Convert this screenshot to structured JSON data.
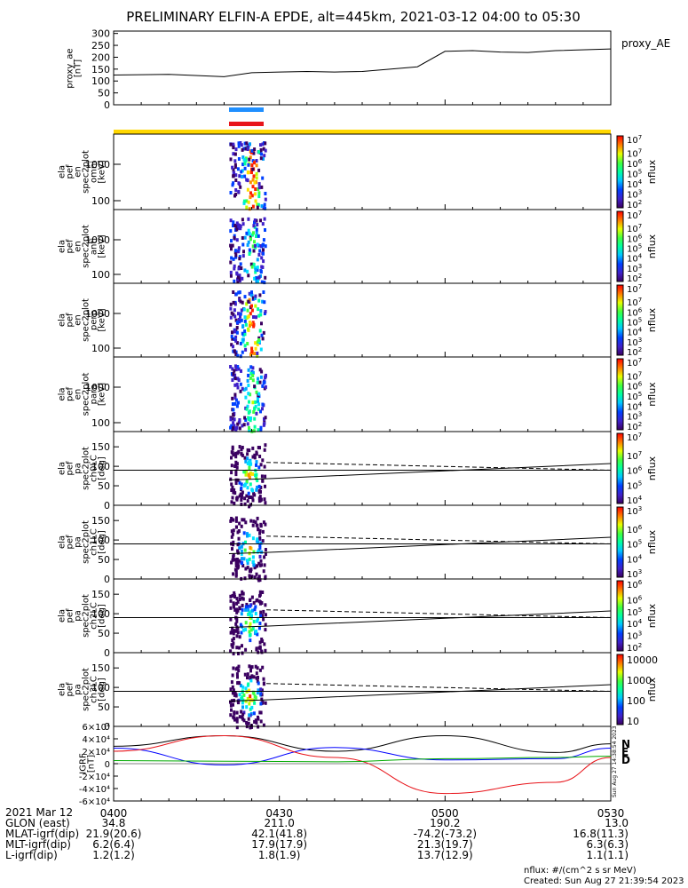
{
  "title": "PRELIMINARY ELFIN-A EPDE, alt=445km, 2021-03-12 04:00 to 05:30",
  "colors": {
    "blue_bar": "#1f8fff",
    "red_bar": "#e8141a",
    "yellow_bar": "#ffd700",
    "frame": "#000000"
  },
  "chart_data": [
    {
      "type": "line",
      "name": "proxy_ae",
      "ylabel": "proxy_ae [nT]",
      "legend": "proxy_AE",
      "yticks": [
        0,
        50,
        100,
        150,
        200,
        250,
        300
      ],
      "ylim": [
        0,
        310
      ],
      "x_minutes": [
        0,
        10,
        20,
        25,
        30,
        35,
        40,
        45,
        55,
        60,
        65,
        70,
        75,
        80,
        90
      ],
      "values": [
        125,
        128,
        118,
        135,
        138,
        140,
        138,
        140,
        160,
        225,
        228,
        222,
        220,
        228,
        235
      ]
    },
    {
      "type": "heatmap",
      "name": "elapef_en_spec2plot_omni",
      "ylabel": [
        "ela",
        "pef",
        "en",
        "spec2plot",
        "omni",
        "[keV]"
      ],
      "yticks": [
        "100",
        "1000"
      ],
      "scale": "log",
      "zlabel": "nflux",
      "ztick_exps": [
        "2",
        "3",
        "4",
        "5",
        "6",
        "7"
      ],
      "z_max_label": "10",
      "z_max_exp": "7"
    },
    {
      "type": "heatmap",
      "name": "elapef_en_spec2plot_anti",
      "ylabel": [
        "ela",
        "pef",
        "en",
        "spec2plot",
        "anti",
        "[keV]"
      ],
      "yticks": [
        "100",
        "1000"
      ],
      "scale": "log",
      "zlabel": "nflux",
      "ztick_exps": [
        "2",
        "3",
        "4",
        "5",
        "6",
        "7"
      ],
      "z_max_label": "10",
      "z_max_exp": "7"
    },
    {
      "type": "heatmap",
      "name": "elapef_en_spec2plot_perp",
      "ylabel": [
        "ela",
        "pef",
        "en",
        "spec2plot",
        "perp",
        "[keV]"
      ],
      "yticks": [
        "100",
        "1000"
      ],
      "scale": "log",
      "zlabel": "nflux",
      "ztick_exps": [
        "2",
        "3",
        "4",
        "5",
        "6",
        "7"
      ],
      "z_max_label": "10",
      "z_max_exp": "7"
    },
    {
      "type": "heatmap",
      "name": "elapef_en_spec2plot_para",
      "ylabel": [
        "ela",
        "pef",
        "en",
        "spec2plot",
        "para",
        "[keV]"
      ],
      "yticks": [
        "100",
        "1000"
      ],
      "scale": "log",
      "zlabel": "nflux",
      "ztick_exps": [
        "2",
        "3",
        "4",
        "5",
        "6",
        "7"
      ],
      "z_max_label": "10",
      "z_max_exp": "7"
    },
    {
      "type": "heatmap",
      "name": "elapef_pa_spec2plot_ch0LC",
      "ylabel": [
        "ela",
        "pef",
        "pa",
        "spec2plot",
        "ch0LC",
        "[deg]"
      ],
      "yticks": [
        "0",
        "50",
        "100",
        "150"
      ],
      "ylim": [
        0,
        180
      ],
      "zlabel": "nflux",
      "ztick_exps": [
        "4",
        "5",
        "6",
        "7"
      ],
      "z_max_label": "10",
      "z_max_exp": "7"
    },
    {
      "type": "heatmap",
      "name": "elapef_pa_spec2plot_ch1LC",
      "ylabel": [
        "ela",
        "pef",
        "pa",
        "spec2plot",
        "ch1LC",
        "[deg]"
      ],
      "yticks": [
        "0",
        "50",
        "100",
        "150"
      ],
      "ylim": [
        0,
        180
      ],
      "zlabel": "nflux",
      "ztick_exps": [
        "3",
        "4",
        "5",
        "6"
      ],
      "z_max_label": "10",
      "z_max_exp": "3"
    },
    {
      "type": "heatmap",
      "name": "elapef_pa_spec2plot_ch2LC",
      "ylabel": [
        "ela",
        "pef",
        "pa",
        "spec2plot",
        "ch2LC",
        "[deg]"
      ],
      "yticks": [
        "0",
        "50",
        "100",
        "150"
      ],
      "ylim": [
        0,
        180
      ],
      "zlabel": "nflux",
      "ztick_exps": [
        "2",
        "3",
        "4",
        "5",
        "6"
      ],
      "z_max_label": "10",
      "z_max_exp": "6"
    },
    {
      "type": "heatmap",
      "name": "elapef_pa_spec2plot_ch3LC",
      "ylabel": [
        "ela",
        "pef",
        "pa",
        "spec2plot",
        "ch3LC",
        "[deg]"
      ],
      "yticks": [
        "0",
        "50",
        "100",
        "150"
      ],
      "ylim": [
        0,
        180
      ],
      "zlabel": "nflux",
      "zticks_plain": [
        "10",
        "100",
        "1000",
        "10000"
      ]
    },
    {
      "type": "line",
      "name": "igrf",
      "ylabel": [
        "IGRF",
        "[nT]"
      ],
      "yticks": [
        "-6×10⁴",
        "-4×10⁴",
        "-2×10⁴",
        "0",
        "2×10⁴",
        "4×10⁴",
        "6×10⁴"
      ],
      "ylim": [
        -60000,
        60000
      ],
      "legend": [
        "N",
        "E",
        "D"
      ],
      "series": [
        {
          "name": "N",
          "color": "#000000",
          "x_minutes": [
            0,
            20,
            40,
            60,
            80,
            90
          ],
          "values": [
            28000,
            45000,
            20000,
            45000,
            18000,
            32000
          ]
        },
        {
          "name": "E",
          "color": "#0000ff",
          "x_minutes": [
            0,
            20,
            40,
            60,
            80,
            90
          ],
          "values": [
            25000,
            -2000,
            26000,
            6000,
            8000,
            25000
          ]
        },
        {
          "name": "D",
          "color": "#e8141a",
          "x_minutes": [
            0,
            20,
            40,
            60,
            80,
            90
          ],
          "values": [
            20000,
            45000,
            10000,
            -48000,
            -30000,
            10000
          ]
        },
        {
          "name": "",
          "color": "#00aa00",
          "x_minutes": [
            0,
            20,
            40,
            60,
            80,
            90
          ],
          "values": [
            5000,
            4000,
            3000,
            8000,
            10000,
            12000
          ]
        }
      ]
    }
  ],
  "time_axis": {
    "labels": [
      "0400",
      "0430",
      "0500",
      "0530"
    ],
    "minutes": [
      0,
      30,
      60,
      90
    ]
  },
  "ephemeris": {
    "date_label": "2021 Mar 12",
    "rows": [
      {
        "label": "GLON (east)",
        "values": [
          "34.8",
          "211.0",
          "190.2",
          "13.0"
        ]
      },
      {
        "label": "MLAT-igrf(dip)",
        "values": [
          "21.9(20.6)",
          "42.1(41.8)",
          "-74.2(-73.2)",
          "16.8(11.3)"
        ]
      },
      {
        "label": "MLT-igrf(dip)",
        "values": [
          "6.2(6.4)",
          "17.9(17.9)",
          "21.3(19.7)",
          "6.3(6.3)"
        ]
      },
      {
        "label": "L-igrf(dip)",
        "values": [
          "1.2(1.2)",
          "1.8(1.9)",
          "13.7(12.9)",
          "1.1(1.1)"
        ]
      }
    ]
  },
  "footer": {
    "units": "nflux: #/(cm^2 s sr MeV)",
    "created": "Created: Sun Aug 27 21:39:54 2023",
    "side_stamp": "Sun Aug 27 14:38:54 2023"
  }
}
